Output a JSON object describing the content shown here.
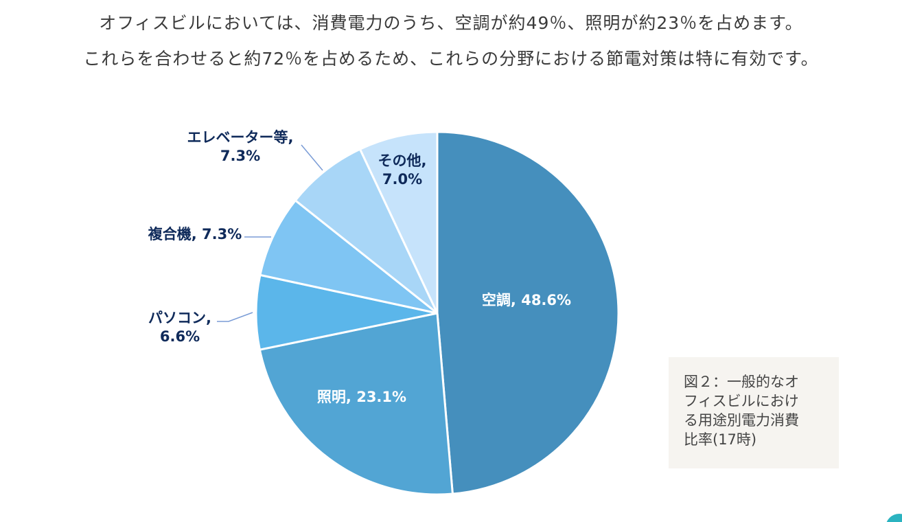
{
  "intro": {
    "line1": "オフィスビルにおいては、消費電力のうち、空調が約49％、照明が約23％を占めます。",
    "line2": "これらを合わせると約72％を占めるため、これらの分野における節電対策は特に有効です。"
  },
  "caption": "図２：一般的なオフィスビルにおける用途別電力消費比率(17時)",
  "caption_lines": [
    "図２：一般的なオ",
    "フィスビルにおけ",
    "る用途別電力消費",
    "比率(17時)"
  ],
  "chart_data": {
    "type": "pie",
    "title": "",
    "start_angle_deg": 0,
    "direction": "clockwise",
    "slices": [
      {
        "name": "空調",
        "value": 48.6,
        "label_lines": [
          "空調, 48.6%"
        ],
        "color": "#458fbd",
        "label_inside": true
      },
      {
        "name": "照明",
        "value": 23.1,
        "label_lines": [
          "照明, 23.1%"
        ],
        "color": "#52a5d4",
        "label_inside": true
      },
      {
        "name": "パソコン",
        "value": 6.6,
        "label_lines": [
          "パソコン,",
          "6.6%"
        ],
        "color": "#5bb6ea",
        "label_inside": false
      },
      {
        "name": "複合機",
        "value": 7.3,
        "label_lines": [
          "複合機, 7.3%"
        ],
        "color": "#7fc5f3",
        "label_inside": false
      },
      {
        "name": "エレベーター等",
        "value": 7.3,
        "label_lines": [
          "エレベーター等,",
          "7.3%"
        ],
        "color": "#a8d6f7",
        "label_inside": false
      },
      {
        "name": "その他",
        "value": 7.0,
        "label_lines": [
          "その他,",
          "7.0%"
        ],
        "color": "#c6e3fb",
        "label_inside": true
      }
    ]
  }
}
